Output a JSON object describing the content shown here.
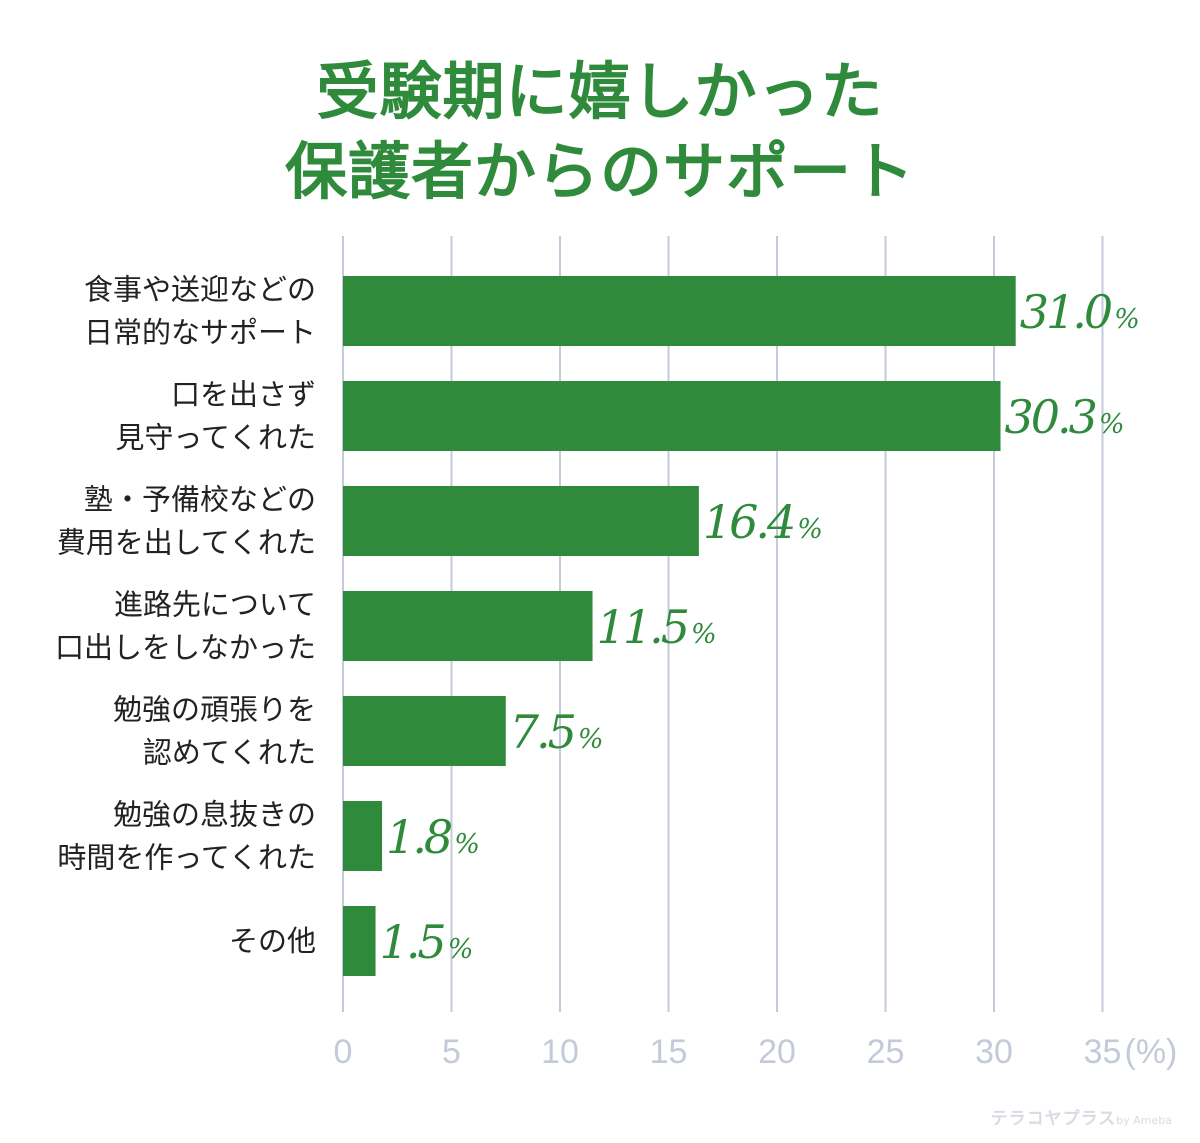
{
  "title_lines": [
    "受験期に嬉しかった",
    "保護者からのサポート"
  ],
  "chart_data": {
    "type": "bar",
    "orientation": "horizontal",
    "categories": [
      [
        "食事や送迎などの",
        "日常的なサポート"
      ],
      [
        "口を出さず",
        "見守ってくれた"
      ],
      [
        "塾・予備校などの",
        "費用を出してくれた"
      ],
      [
        "進路先について",
        "口出しをしなかった"
      ],
      [
        "勉強の頑張りを",
        "認めてくれた"
      ],
      [
        "勉強の息抜きの",
        "時間を作ってくれた"
      ],
      [
        "その他"
      ]
    ],
    "values": [
      31.0,
      30.3,
      16.4,
      11.5,
      7.5,
      1.8,
      1.5
    ],
    "value_labels": [
      "31.0",
      "30.3",
      "16.4",
      "11.5",
      "7.5",
      "1.8",
      "1.5"
    ],
    "value_unit": "%",
    "xlim": [
      0,
      35
    ],
    "x_ticks": [
      "0",
      "5",
      "10",
      "15",
      "20",
      "25",
      "30",
      "35"
    ],
    "x_unit": "(%)",
    "grid": "vertical",
    "bar_color": "#2f8b3b",
    "grid_color": "#c3cad9"
  },
  "watermark": {
    "brand": "テラコヤプラス",
    "by": "by Ameba"
  }
}
